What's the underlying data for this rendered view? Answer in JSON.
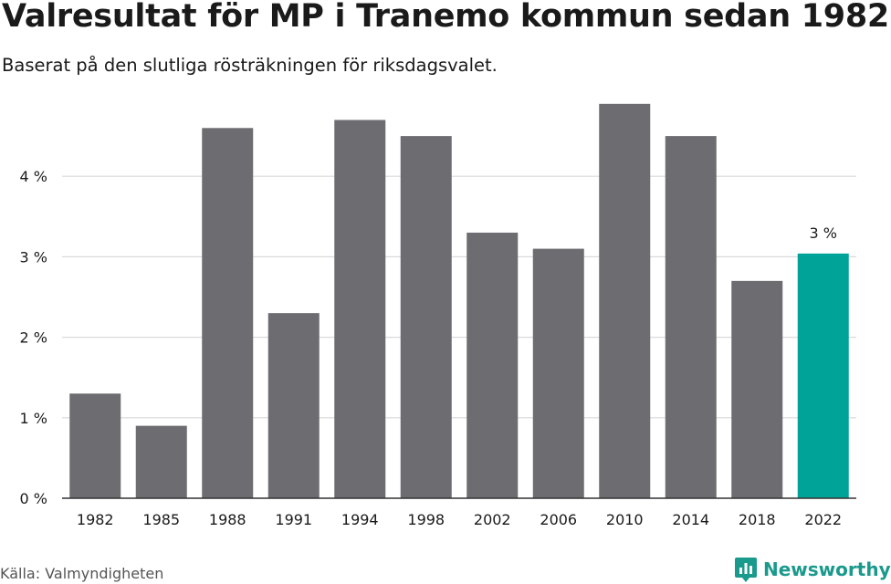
{
  "header": {
    "title": "Valresultat för MP i Tranemo kommun sedan 1982",
    "subtitle": "Baserat på den slutliga rösträkningen för riksdagsvalet."
  },
  "footer": {
    "source": "Källa: Valmyndigheten",
    "brand": "Newsworthy"
  },
  "colors": {
    "bar": "#6d6c71",
    "highlight": "#00a398",
    "grid": "#d9d9d9",
    "axis": "#333333",
    "brand": "#1a9a8c"
  },
  "icons": {
    "brand_logo": "bar-chart-speech-bubble-icon"
  },
  "chart_data": {
    "type": "bar",
    "title": "Valresultat för MP i Tranemo kommun sedan 1982",
    "subtitle": "Baserat på den slutliga rösträkningen för riksdagsvalet.",
    "xlabel": "",
    "ylabel": "",
    "categories": [
      "1982",
      "1985",
      "1988",
      "1991",
      "1994",
      "1998",
      "2002",
      "2006",
      "2010",
      "2014",
      "2018",
      "2022"
    ],
    "values": [
      1.3,
      0.9,
      4.6,
      2.3,
      4.7,
      4.5,
      3.3,
      3.1,
      4.9,
      4.5,
      2.7,
      3.04
    ],
    "ylim": [
      0,
      5
    ],
    "yticks": [
      0,
      1,
      2,
      3,
      4
    ],
    "ytick_labels": [
      "0 %",
      "1 %",
      "2 %",
      "3 %",
      "4 %"
    ],
    "grid": true,
    "highlight_index": 11,
    "annotations": [
      {
        "category": "2022",
        "text": "3 %"
      }
    ]
  }
}
